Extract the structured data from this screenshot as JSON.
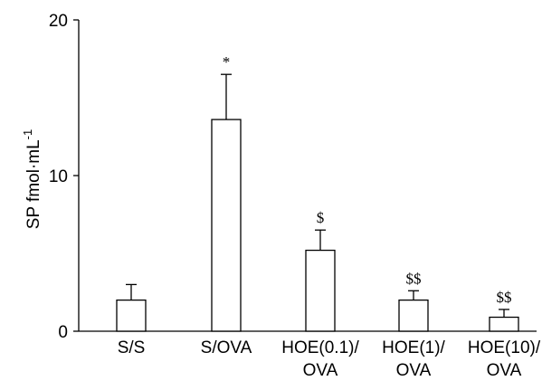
{
  "chart_data": {
    "type": "bar",
    "categories": [
      [
        "S/S"
      ],
      [
        "S/OVA"
      ],
      [
        "HOE(0.1)/",
        "OVA"
      ],
      [
        "HOE(1)/",
        "OVA"
      ],
      [
        "HOE(10)/",
        "OVA"
      ]
    ],
    "values": [
      2.0,
      13.6,
      5.2,
      2.0,
      0.9
    ],
    "errors": [
      1.0,
      2.9,
      1.3,
      0.6,
      0.5
    ],
    "significance": [
      "",
      "*",
      "$",
      "$$",
      "$$"
    ],
    "ylabel": "SP fmol·mL",
    "ylabel_superscript": "-1",
    "ylim": [
      0,
      20
    ],
    "yticks": [
      "0",
      "10",
      "20"
    ],
    "colors": {
      "bar_fill": "#ffffff",
      "stroke": "#000000"
    }
  }
}
